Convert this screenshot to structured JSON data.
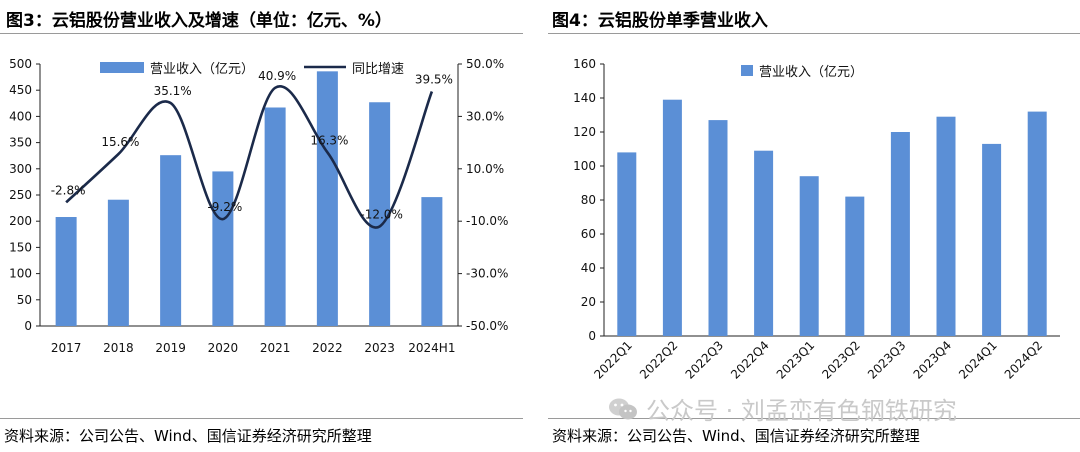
{
  "left": {
    "title": "图3：云铝股份营业收入及增速（单位：亿元、%）",
    "source": "资料来源：公司公告、Wind、国信证券经济研究所整理"
  },
  "right": {
    "title": "图4：云铝股份单季营业收入",
    "source": "资料来源：公司公告、Wind、国信证券经济研究所整理"
  },
  "watermark": "公众号 · 刘孟峦有色钢铁研究",
  "chart_data": [
    {
      "type": "bar",
      "categories": [
        "2017",
        "2018",
        "2019",
        "2020",
        "2021",
        "2022",
        "2023",
        "2024H1"
      ],
      "series": [
        {
          "name": "营业收入（亿元）",
          "kind": "bar",
          "axis": "left",
          "values": [
            208,
            241,
            326,
            295,
            417,
            486,
            427,
            246
          ],
          "color": "#5b8fd6"
        },
        {
          "name": "同比增速",
          "kind": "line",
          "axis": "right",
          "values": [
            -2.8,
            15.6,
            35.1,
            -9.2,
            40.9,
            16.3,
            -12.0,
            39.5
          ],
          "labels": [
            "-2.8%",
            "15.6%",
            "35.1%",
            "-9.2%",
            "40.9%",
            "16.3%",
            "-12.0%",
            "39.5%"
          ],
          "color": "#1b2a4a"
        }
      ],
      "ylim": [
        0,
        500
      ],
      "yticks": [
        "0",
        "50",
        "100",
        "150",
        "200",
        "250",
        "300",
        "350",
        "400",
        "450",
        "500"
      ],
      "y2lim": [
        -50,
        50
      ],
      "y2ticks": [
        "-50.0%",
        "-30.0%",
        "-10.0%",
        "10.0%",
        "30.0%",
        "50.0%"
      ],
      "legend": "top"
    },
    {
      "type": "bar",
      "categories": [
        "2022Q1",
        "2022Q2",
        "2022Q3",
        "2022Q4",
        "2023Q1",
        "2023Q2",
        "2023Q3",
        "2023Q4",
        "2024Q1",
        "2024Q2"
      ],
      "series": [
        {
          "name": "营业收入（亿元）",
          "kind": "bar",
          "values": [
            108,
            139,
            127,
            109,
            94,
            82,
            120,
            129,
            113,
            132
          ],
          "color": "#5b8fd6"
        }
      ],
      "ylim": [
        0,
        160
      ],
      "yticks": [
        "0",
        "20",
        "40",
        "60",
        "80",
        "100",
        "120",
        "140",
        "160"
      ],
      "legend": "top"
    }
  ]
}
